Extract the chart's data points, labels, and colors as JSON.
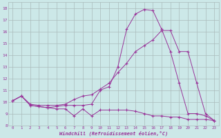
{
  "xlabel": "Windchill (Refroidissement éolien,°C)",
  "xlim": [
    -0.5,
    23.5
  ],
  "ylim": [
    8,
    18.5
  ],
  "yticks": [
    8,
    9,
    10,
    11,
    12,
    13,
    14,
    15,
    16,
    17,
    18
  ],
  "xticks": [
    0,
    1,
    2,
    3,
    4,
    5,
    6,
    7,
    8,
    9,
    10,
    11,
    12,
    13,
    14,
    15,
    16,
    17,
    18,
    19,
    20,
    21,
    22,
    23
  ],
  "bg_color": "#cce8e8",
  "line_color": "#993399",
  "grid_color": "#aabbbb",
  "line1_x": [
    0,
    1,
    2,
    3,
    4,
    5,
    6,
    7,
    8,
    9,
    10,
    11,
    12,
    13,
    14,
    15,
    16,
    17,
    18,
    19,
    20,
    21,
    22,
    23
  ],
  "line1_y": [
    10.1,
    10.5,
    9.7,
    9.6,
    9.5,
    9.4,
    9.4,
    8.8,
    9.4,
    8.8,
    9.3,
    9.3,
    9.3,
    9.3,
    9.2,
    9.0,
    8.8,
    8.8,
    8.7,
    8.7,
    8.5,
    8.5,
    8.5,
    8.4
  ],
  "line2_x": [
    0,
    1,
    2,
    3,
    4,
    5,
    6,
    7,
    8,
    9,
    10,
    11,
    12,
    13,
    14,
    15,
    16,
    17,
    18,
    19,
    20,
    21,
    22,
    23
  ],
  "line2_y": [
    10.1,
    10.5,
    9.8,
    9.7,
    9.7,
    9.7,
    9.8,
    10.2,
    10.5,
    10.6,
    11.1,
    11.6,
    12.5,
    13.3,
    14.3,
    14.8,
    15.3,
    16.1,
    16.1,
    14.3,
    14.3,
    11.6,
    9.0,
    8.4
  ],
  "line3_x": [
    0,
    1,
    2,
    3,
    4,
    5,
    6,
    7,
    8,
    9,
    10,
    11,
    12,
    13,
    14,
    15,
    16,
    17,
    18,
    19,
    20,
    21,
    22,
    23
  ],
  "line3_y": [
    10.1,
    10.5,
    9.7,
    9.6,
    9.5,
    9.6,
    9.7,
    9.7,
    9.7,
    9.8,
    11.0,
    11.3,
    13.0,
    16.2,
    17.5,
    17.9,
    17.8,
    16.2,
    14.3,
    11.6,
    9.0,
    9.0,
    8.8,
    8.4
  ]
}
